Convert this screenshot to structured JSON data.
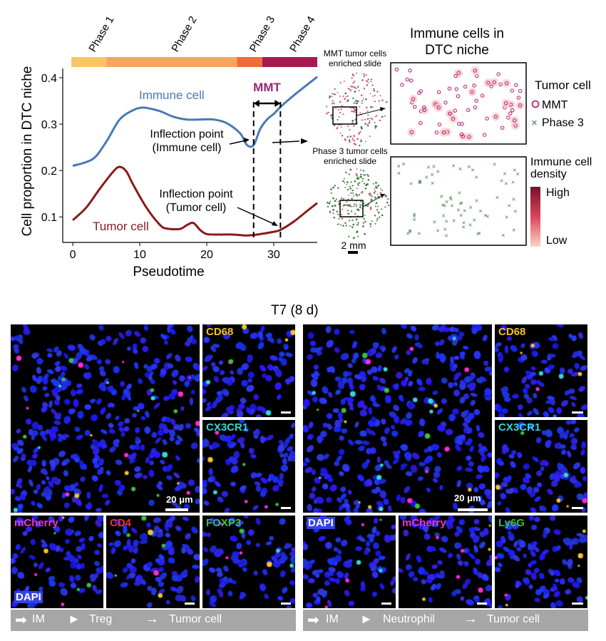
{
  "top_chart": {
    "phases": [
      "Phase 1",
      "Phase 2",
      "Phase 3",
      "Phase 4"
    ],
    "phase_colors": [
      "#f7c566",
      "#f4a561",
      "#ef6c3c",
      "#a31b4f"
    ],
    "ylabel": "Cell proportion in DTC niche",
    "xlabel": "Pseudotime",
    "mmt_label": "MMT",
    "series_labels": {
      "immune": "Immune cell",
      "tumor": "Tumor cell"
    },
    "annotations": {
      "inflection_immune": [
        "Inflection point",
        "(Immune cell)"
      ],
      "inflection_tumor": [
        "Inflection point",
        "(Tumor cell)"
      ]
    }
  },
  "chart_data": {
    "type": "line",
    "xlabel": "Pseudotime",
    "ylabel": "Cell proportion in DTC niche",
    "xlim": [
      -1.5,
      36.5
    ],
    "ylim": [
      0.045,
      0.42
    ],
    "xticks": [
      0,
      10,
      20,
      30
    ],
    "yticks": [
      0.1,
      0.2,
      0.3,
      0.4
    ],
    "phase_boundaries": [
      0,
      5,
      24.5,
      28.3,
      36.5
    ],
    "mmt_range": [
      27,
      31
    ],
    "series": [
      {
        "name": "Immune cell",
        "color": "#4a78b5",
        "x": [
          0,
          3,
          5,
          7,
          9,
          10,
          11,
          13,
          15,
          17,
          19,
          21,
          23,
          25,
          26,
          27,
          28,
          29,
          30,
          31,
          33,
          35,
          36.5
        ],
        "y": [
          0.21,
          0.225,
          0.262,
          0.31,
          0.33,
          0.335,
          0.335,
          0.328,
          0.316,
          0.31,
          0.31,
          0.31,
          0.302,
          0.28,
          0.255,
          0.255,
          0.29,
          0.31,
          0.322,
          0.337,
          0.362,
          0.385,
          0.402
        ]
      },
      {
        "name": "Tumor cell",
        "color": "#8b1a1a",
        "x": [
          0,
          2,
          4,
          6,
          7,
          8,
          9,
          11,
          13,
          14,
          16,
          17,
          18,
          19,
          20,
          22,
          24,
          26,
          28,
          30,
          31,
          33,
          35,
          36.5
        ],
        "y": [
          0.093,
          0.12,
          0.16,
          0.197,
          0.208,
          0.198,
          0.17,
          0.12,
          0.083,
          0.075,
          0.074,
          0.082,
          0.087,
          0.072,
          0.063,
          0.062,
          0.062,
          0.06,
          0.063,
          0.068,
          0.072,
          0.09,
          0.113,
          0.13
        ]
      }
    ]
  },
  "slides": {
    "mmt_title": [
      "MMT tumor cells",
      "enriched slide"
    ],
    "phase3_title": [
      "Phase 3 tumor cells",
      "enriched slide"
    ],
    "scale": "2 mm"
  },
  "niche": {
    "title": [
      "Immune cells in",
      "DTC niche"
    ],
    "legend_title": "Tumor cell",
    "legend_items": [
      "MMT",
      "Phase 3"
    ],
    "density_title": [
      "Immune cell",
      "density"
    ],
    "density_high": "High",
    "density_low": "Low",
    "colors": {
      "mmt": "#c0287a",
      "phase3": "#3a7d3a"
    }
  },
  "micro": {
    "title": "T7 (8 d)",
    "left": {
      "right_tiles": [
        "CD68",
        "CX3CR1"
      ],
      "bottom_tiles": [
        "mCherry",
        "CD4",
        "FOXP3"
      ],
      "dapi": "DAPI",
      "scale": "20 μm",
      "legend": [
        "IM",
        "Treg",
        "Tumor cell"
      ]
    },
    "right": {
      "right_tiles": [
        "CD68",
        "CX3CR1"
      ],
      "bottom_tiles": [
        "DAPI",
        "mCherry",
        "Ly6G"
      ],
      "scale": "20 μm",
      "legend": [
        "IM",
        "Neutrophil",
        "Tumor cell"
      ]
    },
    "label_colors": {
      "CD68": "#f2c12e",
      "CX3CR1": "#35d6d6",
      "mCherry": "#ff2bd6",
      "CD4": "#ff2b2b",
      "FOXP3": "#3cc13c",
      "Ly6G": "#3cc13c",
      "DAPI": "#4a5cff"
    }
  }
}
